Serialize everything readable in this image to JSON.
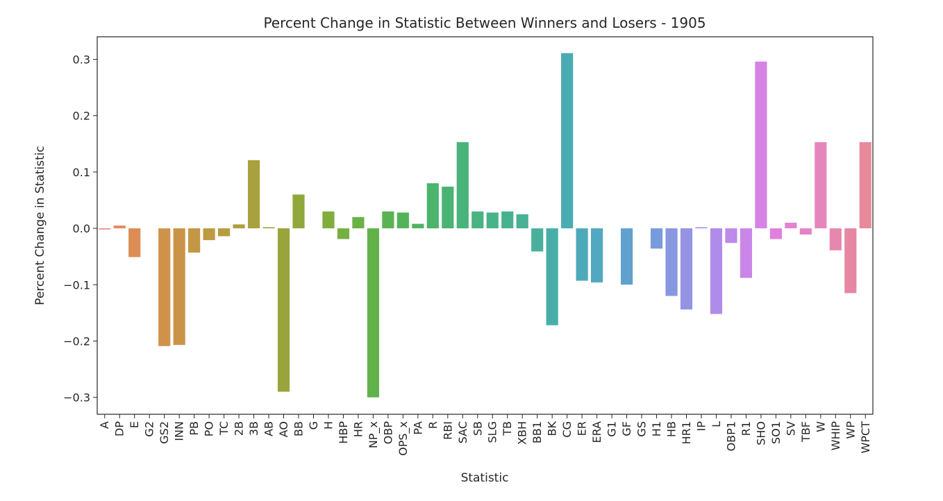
{
  "chart_data": {
    "type": "bar",
    "title": "Percent Change in Statistic Between Winners and Losers - 1905",
    "xlabel": "Statistic",
    "ylabel": "Percent Change in Statistic",
    "ylim": [
      -0.33,
      0.34
    ],
    "yticks": [
      -0.3,
      -0.2,
      -0.1,
      0.0,
      0.1,
      0.2,
      0.3
    ],
    "ytick_labels": [
      "−0.3",
      "−0.2",
      "−0.1",
      "0.0",
      "0.1",
      "0.2",
      "0.3"
    ],
    "grid": false,
    "legend": "none",
    "categories": [
      "A",
      "DP",
      "E",
      "G2",
      "GS2",
      "INN",
      "PB",
      "PO",
      "TC",
      "2B",
      "3B",
      "AB",
      "AO",
      "BB",
      "G",
      "H",
      "HBP",
      "HR",
      "NP_x",
      "OBP",
      "OPS_x",
      "PA",
      "R",
      "RBI",
      "SAC",
      "SB",
      "SLG",
      "TB",
      "XBH",
      "BB1",
      "BK",
      "CG",
      "ER",
      "ERA",
      "G1",
      "GF",
      "GS",
      "H1",
      "HB",
      "HR1",
      "IP",
      "L",
      "OBP1",
      "R1",
      "SHO",
      "SO1",
      "SV",
      "TBF",
      "W",
      "WHIP",
      "WP",
      "WPCT"
    ],
    "values": [
      -0.002,
      0.005,
      -0.051,
      0.0,
      -0.209,
      -0.207,
      -0.043,
      -0.021,
      -0.014,
      0.007,
      0.121,
      0.002,
      -0.29,
      0.06,
      0.0,
      0.03,
      -0.019,
      0.02,
      -0.3,
      0.03,
      0.028,
      0.008,
      0.08,
      0.074,
      0.153,
      0.03,
      0.028,
      0.03,
      0.025,
      -0.041,
      -0.172,
      0.311,
      -0.093,
      -0.096,
      0.0,
      -0.1,
      0.0,
      -0.036,
      -0.12,
      -0.144,
      0.002,
      -0.152,
      -0.026,
      -0.088,
      0.296,
      -0.019,
      0.01,
      -0.011,
      0.153,
      -0.039,
      -0.115,
      0.153
    ],
    "colors": [
      "#e8867c",
      "#e78a66",
      "#dc8c55",
      "#d68f4f",
      "#d0924b",
      "#ca9448",
      "#c39745",
      "#bd9a43",
      "#b69c41",
      "#af9e3f",
      "#a8a13e",
      "#a0a33d",
      "#99a53c",
      "#90a83b",
      "#88aa3c",
      "#80ad3e",
      "#76af42",
      "#6cb146",
      "#62b24c",
      "#59b352",
      "#52b45a",
      "#4fb462",
      "#4cb46b",
      "#4ab473",
      "#49b37a",
      "#49b381",
      "#48b388",
      "#48b28f",
      "#48b196",
      "#48b09d",
      "#48aeaa",
      "#4aacb2",
      "#4eaab9",
      "#52a8c0",
      "#58a5c8",
      "#60a1ce",
      "#6a9ed5",
      "#789bdb",
      "#8797e0",
      "#9594e4",
      "#a390e7",
      "#b08cea",
      "#bd89ea",
      "#c986e8",
      "#d684e4",
      "#e081de",
      "#e482d4",
      "#e583c8",
      "#e685bd",
      "#e687b0",
      "#e688a4",
      "#e68a99"
    ]
  }
}
